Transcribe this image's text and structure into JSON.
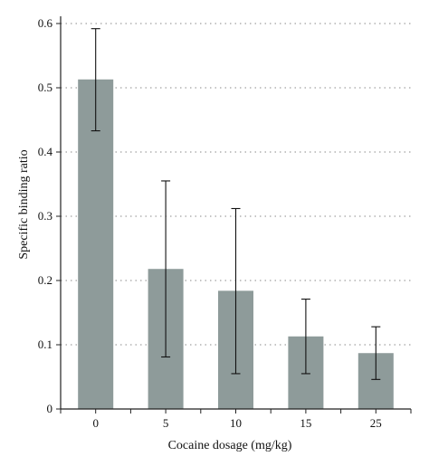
{
  "chart_data": {
    "type": "bar",
    "categories": [
      "0",
      "5",
      "10",
      "15",
      "25"
    ],
    "values": [
      0.513,
      0.218,
      0.184,
      0.113,
      0.087
    ],
    "error_low": [
      0.433,
      0.081,
      0.055,
      0.055,
      0.046
    ],
    "error_high": [
      0.592,
      0.355,
      0.312,
      0.171,
      0.128
    ],
    "title": "",
    "xlabel": "Cocaine dosage (mg/kg)",
    "ylabel": "Specific binding ratio",
    "ylim": [
      0,
      0.6
    ],
    "yticks": [
      "0",
      "0.1",
      "0.2",
      "0.3",
      "0.4",
      "0.5",
      "0.6"
    ],
    "grid": "horizontal dotted",
    "bar_color": "#8e9b9a",
    "legend": "none"
  }
}
